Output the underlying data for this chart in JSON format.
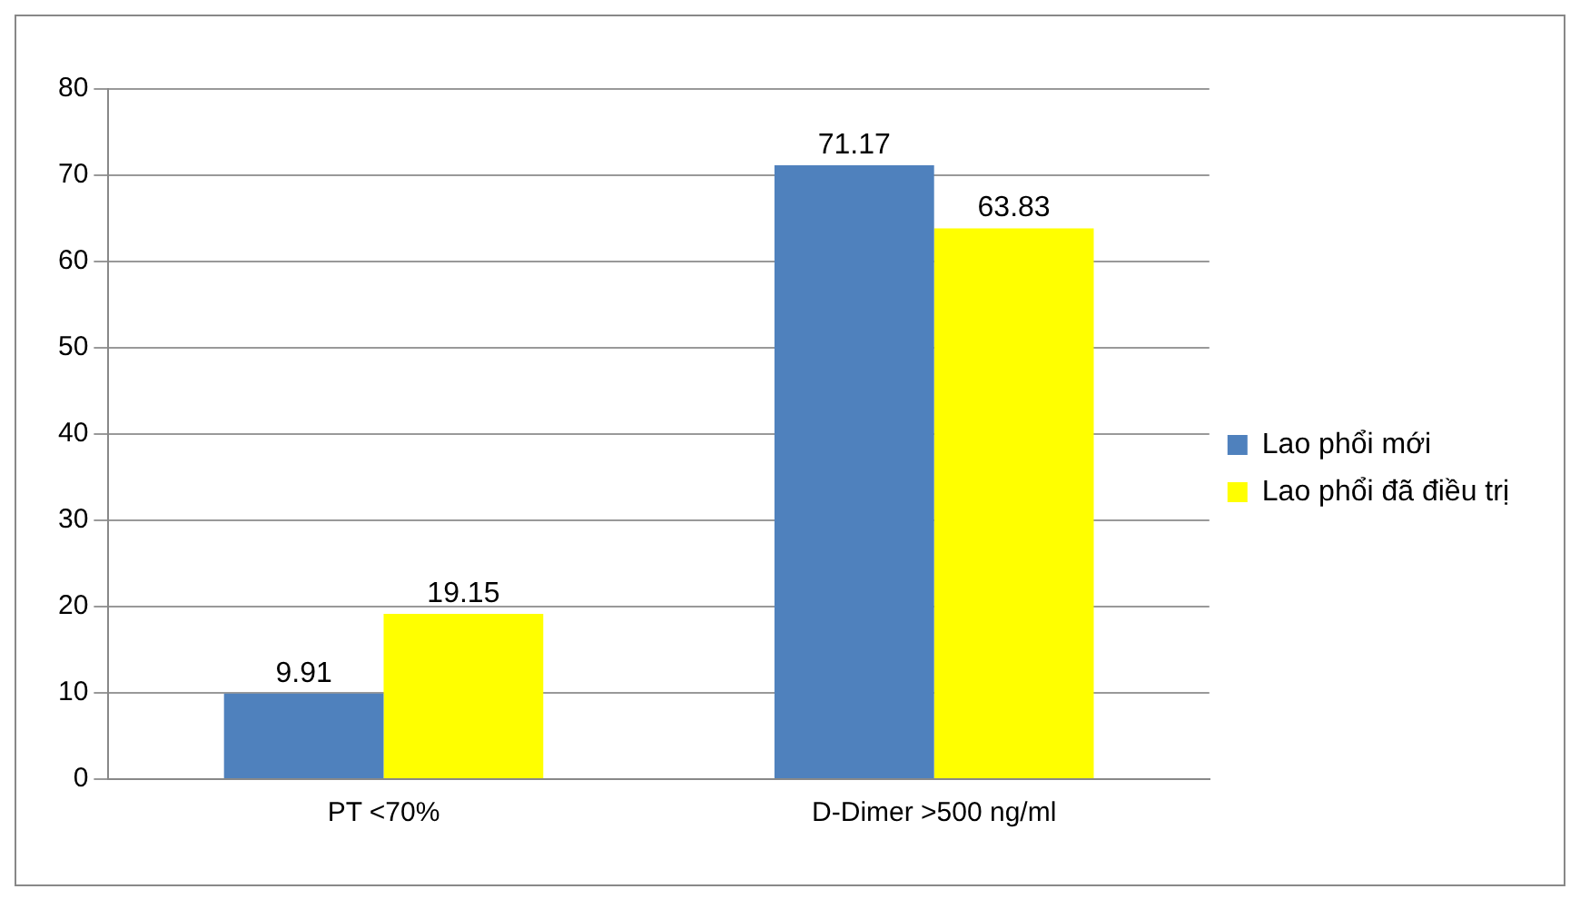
{
  "chart_data": {
    "type": "bar",
    "categories": [
      "PT <70%",
      "D-Dimer >500 ng/ml"
    ],
    "series": [
      {
        "name": "Lao phổi mới",
        "color": "#4f81bd",
        "values": [
          9.91,
          71.17
        ]
      },
      {
        "name": "Lao phổi đã điều trị",
        "color": "#ffff00",
        "values": [
          19.15,
          63.83
        ]
      }
    ],
    "ylim": [
      0,
      80
    ],
    "yticks": [
      0,
      10,
      20,
      30,
      40,
      50,
      60,
      70,
      80
    ],
    "grid": "y",
    "legend": "right",
    "data_labels": true
  }
}
